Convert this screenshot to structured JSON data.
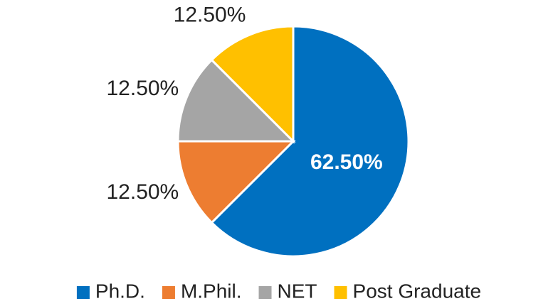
{
  "chart_data": {
    "type": "pie",
    "categories": [
      "Ph.D.",
      "M.Phil.",
      "NET",
      "Post Graduate"
    ],
    "values": [
      62.5,
      12.5,
      12.5,
      12.5
    ],
    "value_labels": [
      "62.50%",
      "12.50%",
      "12.50%",
      "12.50%"
    ],
    "colors": [
      "#0070c0",
      "#ed7d31",
      "#a5a5a5",
      "#ffc000"
    ],
    "legend": "bottom"
  }
}
